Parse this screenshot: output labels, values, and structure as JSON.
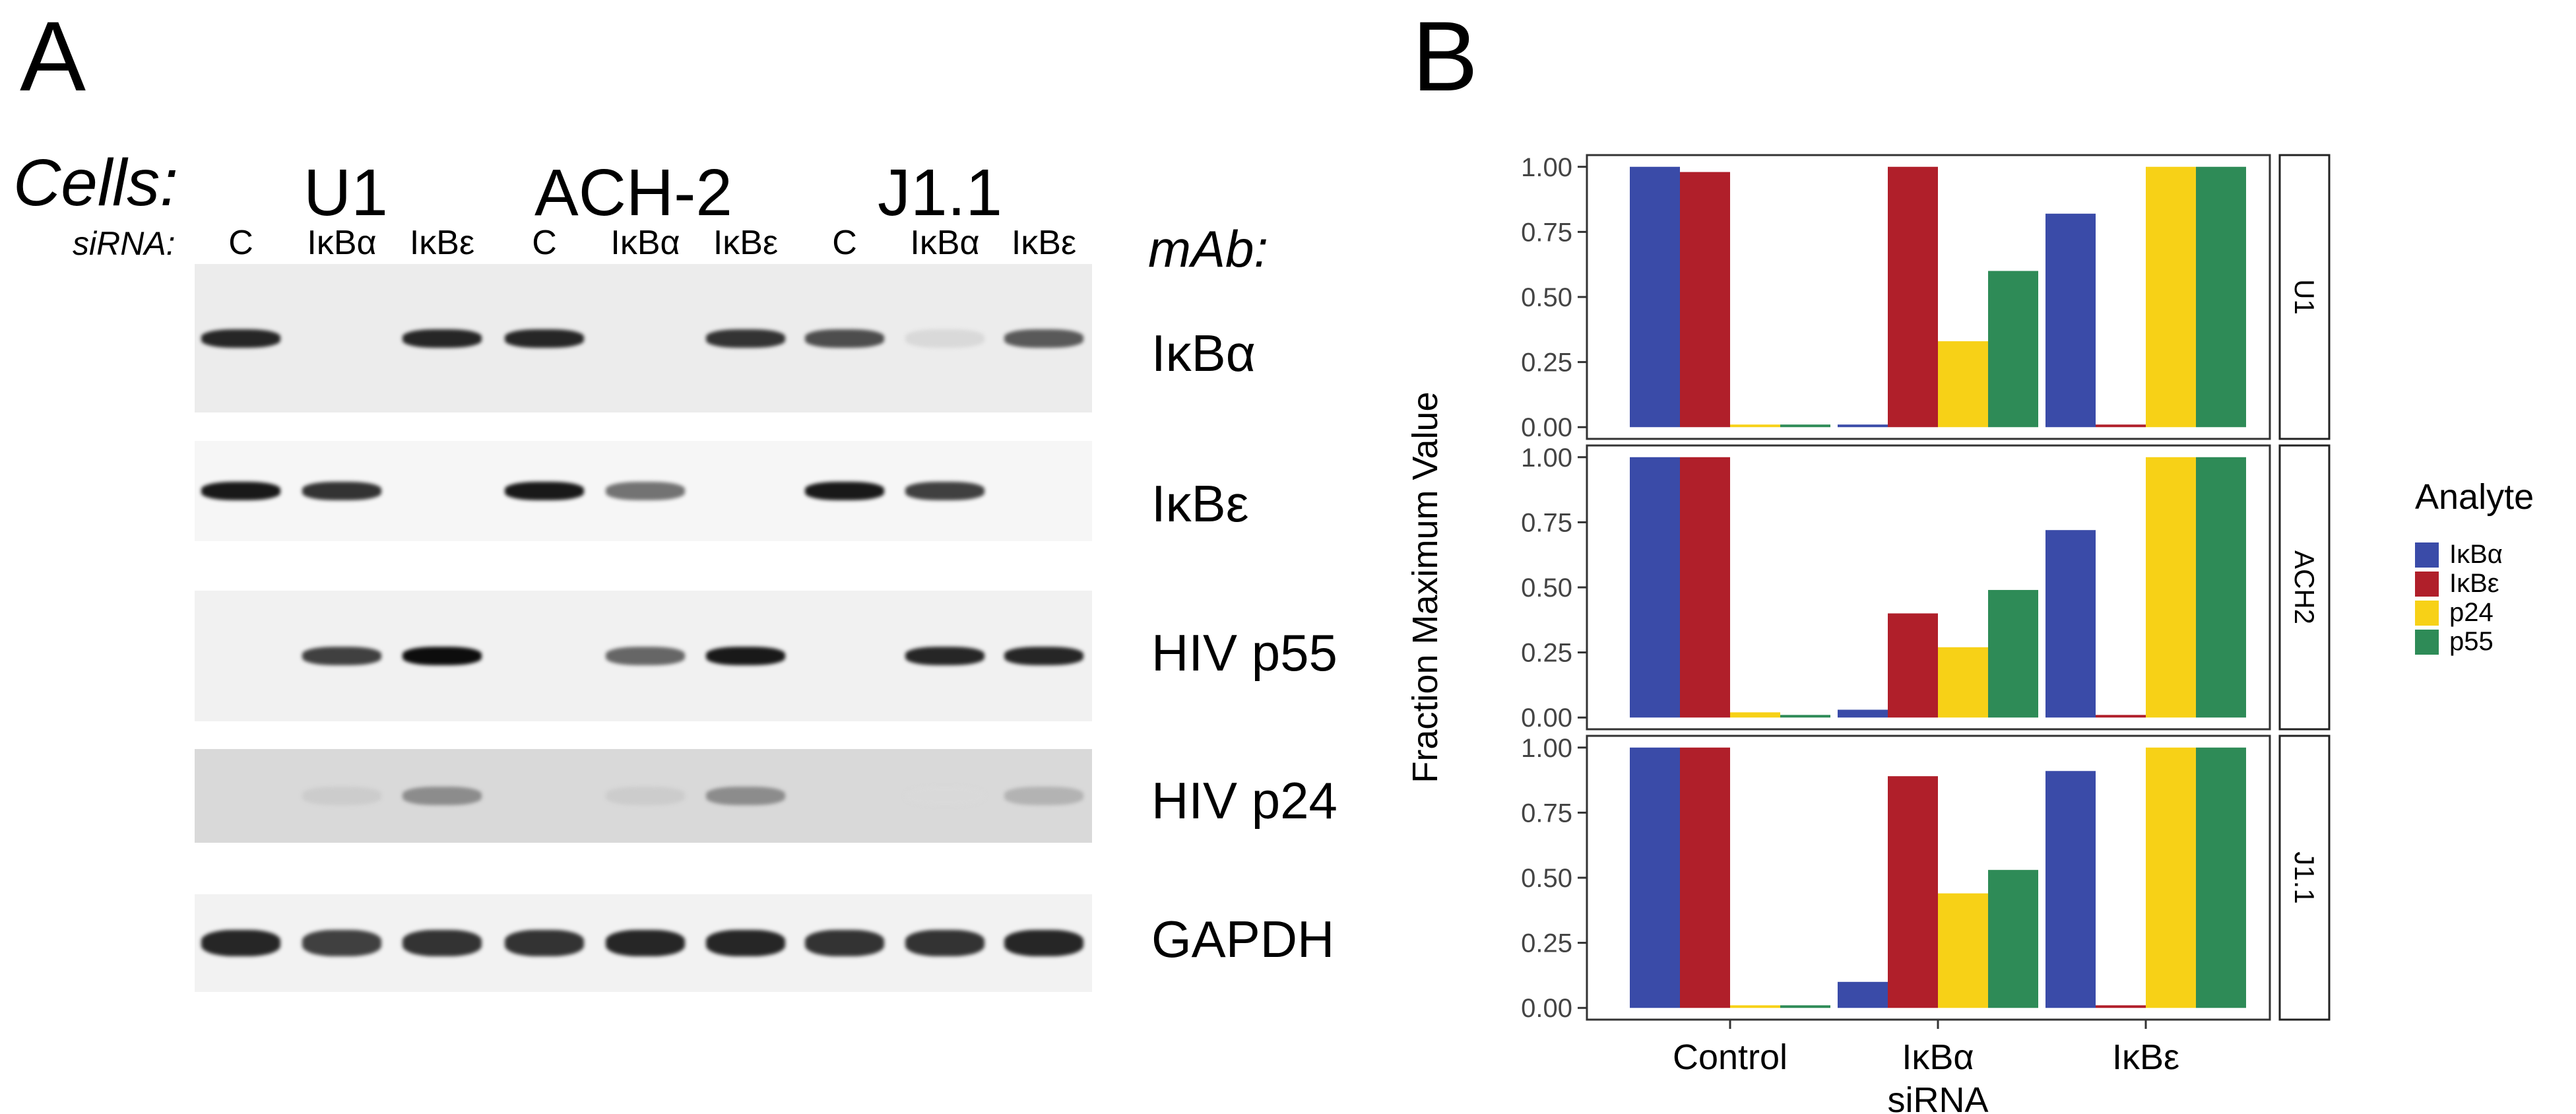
{
  "panel_a": {
    "letter": "A",
    "cells_label": "Cells:",
    "sirna_label": "siRNA:",
    "mab_label": "mAb:",
    "cell_lines": [
      "U1",
      "ACH-2",
      "J1.1"
    ],
    "lane_labels": [
      "C",
      "IκBα",
      "IκBε",
      "C",
      "IκBα",
      "IκBε",
      "C",
      "IκBα",
      "IκBε"
    ],
    "antibodies": [
      "IκBα",
      "IκBε",
      "HIV p55",
      "HIV p24",
      "GAPDH"
    ],
    "blot_intensities": [
      [
        0.85,
        0.0,
        0.85,
        0.85,
        0.0,
        0.8,
        0.7,
        0.15,
        0.65
      ],
      [
        0.9,
        0.8,
        0.0,
        0.9,
        0.55,
        0.0,
        0.9,
        0.75,
        0.0
      ],
      [
        0.0,
        0.75,
        0.95,
        0.0,
        0.6,
        0.9,
        0.0,
        0.85,
        0.85
      ],
      [
        0.0,
        0.2,
        0.45,
        0.0,
        0.2,
        0.45,
        0.0,
        0.15,
        0.3
      ],
      [
        0.85,
        0.75,
        0.8,
        0.8,
        0.85,
        0.85,
        0.8,
        0.8,
        0.85
      ]
    ]
  },
  "panel_b": {
    "letter": "B",
    "ylabel": "Fraction Maximum Value",
    "x_categories": [
      "Control",
      "IκBα\nsiRNA",
      "IκBε"
    ],
    "x_line1": [
      "Control",
      "IκBα",
      "IκBε"
    ],
    "x_line2": [
      "",
      "siRNA",
      ""
    ],
    "y_ticks": [
      "0.00",
      "0.25",
      "0.50",
      "0.75",
      "1.00"
    ]
  },
  "legend": {
    "title": "Analyte",
    "items": [
      {
        "label": "IκBα",
        "color": "#3A4BA8"
      },
      {
        "label": "IκBε",
        "color": "#B01F2A"
      },
      {
        "label": "p24",
        "color": "#F7D117"
      },
      {
        "label": "p55",
        "color": "#2E8B57"
      }
    ]
  },
  "chart_data": {
    "type": "bar",
    "ylabel": "Fraction Maximum Value",
    "categories": [
      "Control",
      "IκBα siRNA",
      "IκBε"
    ],
    "ylim": [
      0,
      1
    ],
    "facets": [
      {
        "name": "U1",
        "series": [
          {
            "name": "IκBα",
            "values": [
              1.0,
              0.01,
              0.82
            ]
          },
          {
            "name": "IκBε",
            "values": [
              0.98,
              1.0,
              0.01
            ]
          },
          {
            "name": "p24",
            "values": [
              0.01,
              0.33,
              1.0
            ]
          },
          {
            "name": "p55",
            "values": [
              0.01,
              0.6,
              1.0
            ]
          }
        ]
      },
      {
        "name": "ACH2",
        "series": [
          {
            "name": "IκBα",
            "values": [
              1.0,
              0.03,
              0.72
            ]
          },
          {
            "name": "IκBε",
            "values": [
              1.0,
              0.4,
              0.01
            ]
          },
          {
            "name": "p24",
            "values": [
              0.02,
              0.27,
              1.0
            ]
          },
          {
            "name": "p55",
            "values": [
              0.01,
              0.49,
              1.0
            ]
          }
        ]
      },
      {
        "name": "J1.1",
        "series": [
          {
            "name": "IκBα",
            "values": [
              1.0,
              0.1,
              0.91
            ]
          },
          {
            "name": "IκBε",
            "values": [
              1.0,
              0.89,
              0.01
            ]
          },
          {
            "name": "p24",
            "values": [
              0.01,
              0.44,
              1.0
            ]
          },
          {
            "name": "p55",
            "values": [
              0.01,
              0.53,
              1.0
            ]
          }
        ]
      }
    ]
  }
}
